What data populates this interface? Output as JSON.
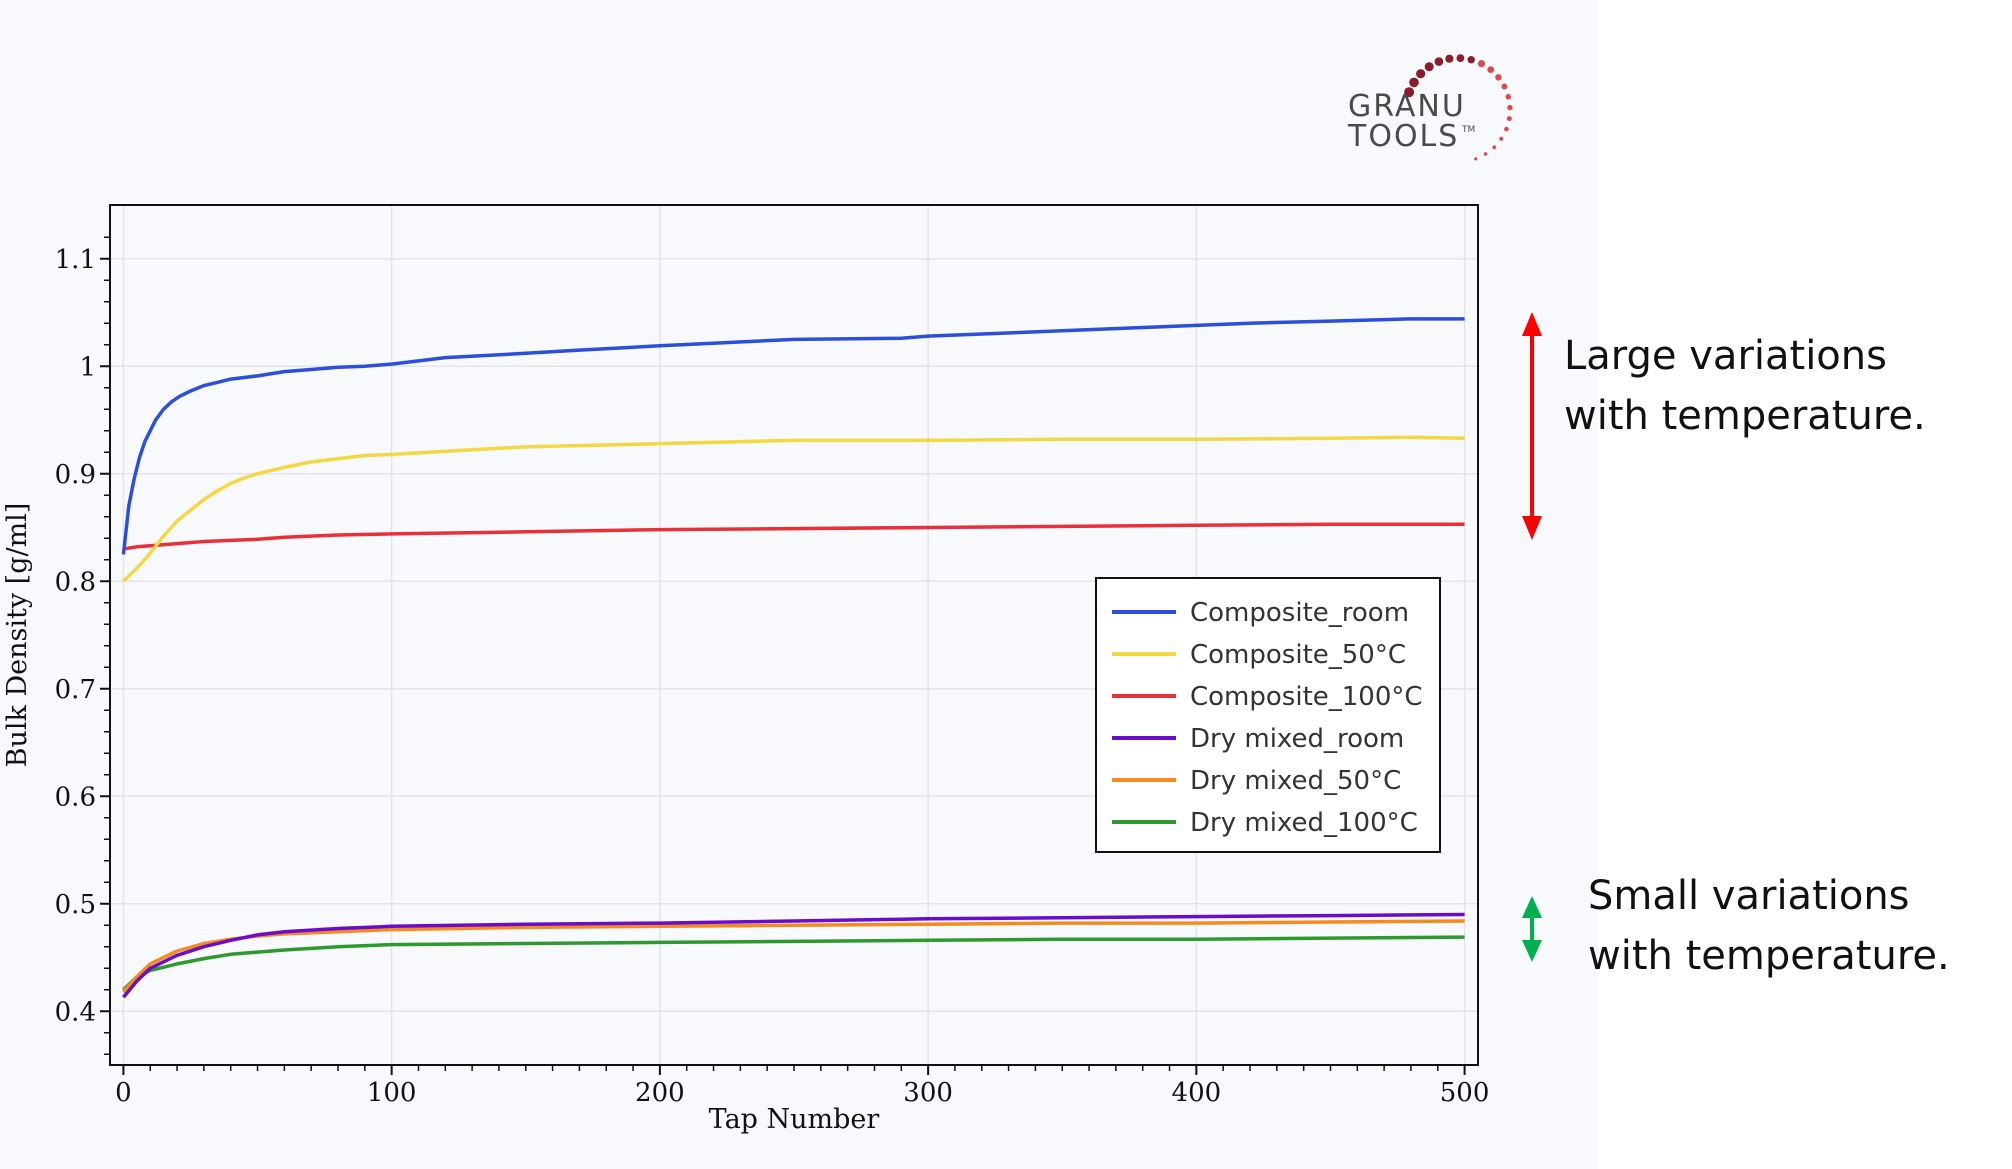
{
  "logo": {
    "line1": "GRANU",
    "line2": "TOOLS",
    "tm": "TM",
    "dot_color_dark": "#8b1c2a",
    "dot_color_light": "#e0484f"
  },
  "annotations": {
    "large": "Large variations\nwith temperature.",
    "small": "Small variations\nwith temperature.",
    "large_arrow_color": "#ff0000",
    "small_arrow_color": "#00b050"
  },
  "chart_data": {
    "type": "line",
    "title": "",
    "xlabel": "Tap Number",
    "ylabel": "Bulk Density [g/ml]",
    "xlim": [
      -5,
      505
    ],
    "ylim": [
      0.35,
      1.15
    ],
    "xticks": [
      0,
      100,
      200,
      300,
      400,
      500
    ],
    "yticks": [
      0.4,
      0.5,
      0.6,
      0.7,
      0.8,
      0.9,
      1,
      1.1
    ],
    "ytick_labels": [
      "0.4",
      "0.5",
      "0.6",
      "0.7",
      "0.8",
      "0.9",
      "1",
      "1.1"
    ],
    "grid": true,
    "legend_position": "right-middle",
    "series": [
      {
        "name": "Composite_room",
        "color": "#2b4fd9",
        "x": [
          0,
          2,
          4,
          6,
          8,
          10,
          12,
          15,
          18,
          21,
          25,
          30,
          35,
          40,
          50,
          60,
          70,
          80,
          90,
          100,
          120,
          150,
          170,
          200,
          250,
          290,
          300,
          350,
          380,
          400,
          420,
          450,
          480,
          500
        ],
        "y": [
          0.825,
          0.87,
          0.895,
          0.915,
          0.93,
          0.94,
          0.95,
          0.96,
          0.967,
          0.972,
          0.977,
          0.982,
          0.985,
          0.988,
          0.991,
          0.995,
          0.997,
          0.999,
          1.0,
          1.002,
          1.008,
          1.012,
          1.015,
          1.019,
          1.025,
          1.026,
          1.028,
          1.033,
          1.036,
          1.038,
          1.04,
          1.042,
          1.044,
          1.044
        ]
      },
      {
        "name": "Composite_50°C",
        "color": "#f5d742",
        "x": [
          0,
          5,
          10,
          15,
          20,
          25,
          30,
          35,
          40,
          45,
          50,
          60,
          70,
          80,
          90,
          100,
          120,
          150,
          200,
          250,
          300,
          350,
          400,
          450,
          480,
          500
        ],
        "y": [
          0.8,
          0.812,
          0.826,
          0.842,
          0.856,
          0.866,
          0.876,
          0.884,
          0.891,
          0.896,
          0.9,
          0.906,
          0.911,
          0.914,
          0.917,
          0.918,
          0.921,
          0.925,
          0.928,
          0.931,
          0.931,
          0.932,
          0.932,
          0.933,
          0.934,
          0.933
        ]
      },
      {
        "name": "Composite_100°C",
        "color": "#e8303a",
        "x": [
          0,
          5,
          10,
          20,
          30,
          40,
          50,
          60,
          80,
          100,
          150,
          200,
          250,
          300,
          350,
          400,
          450,
          500
        ],
        "y": [
          0.83,
          0.832,
          0.833,
          0.835,
          0.837,
          0.838,
          0.839,
          0.841,
          0.843,
          0.844,
          0.846,
          0.848,
          0.849,
          0.85,
          0.851,
          0.852,
          0.853,
          0.853
        ]
      },
      {
        "name": "Dry mixed_room",
        "color": "#6a0dc9",
        "x": [
          0,
          5,
          10,
          20,
          30,
          40,
          50,
          60,
          80,
          100,
          150,
          200,
          250,
          300,
          350,
          400,
          450,
          500
        ],
        "y": [
          0.413,
          0.428,
          0.44,
          0.452,
          0.46,
          0.466,
          0.471,
          0.474,
          0.477,
          0.479,
          0.481,
          0.482,
          0.484,
          0.486,
          0.487,
          0.488,
          0.489,
          0.49
        ]
      },
      {
        "name": "Dry mixed_50°C",
        "color": "#f58a1f",
        "x": [
          0,
          5,
          10,
          20,
          30,
          40,
          50,
          60,
          80,
          100,
          150,
          200,
          250,
          300,
          350,
          400,
          450,
          500
        ],
        "y": [
          0.418,
          0.432,
          0.444,
          0.456,
          0.463,
          0.467,
          0.47,
          0.472,
          0.474,
          0.476,
          0.478,
          0.479,
          0.48,
          0.481,
          0.482,
          0.482,
          0.483,
          0.484
        ]
      },
      {
        "name": "Dry mixed_100°C",
        "color": "#2e9a2e",
        "x": [
          0,
          5,
          10,
          20,
          30,
          40,
          50,
          60,
          80,
          100,
          150,
          200,
          250,
          300,
          350,
          400,
          450,
          500
        ],
        "y": [
          0.42,
          0.432,
          0.438,
          0.444,
          0.449,
          0.453,
          0.455,
          0.457,
          0.46,
          0.462,
          0.463,
          0.464,
          0.465,
          0.466,
          0.467,
          0.467,
          0.468,
          0.469
        ]
      }
    ]
  }
}
